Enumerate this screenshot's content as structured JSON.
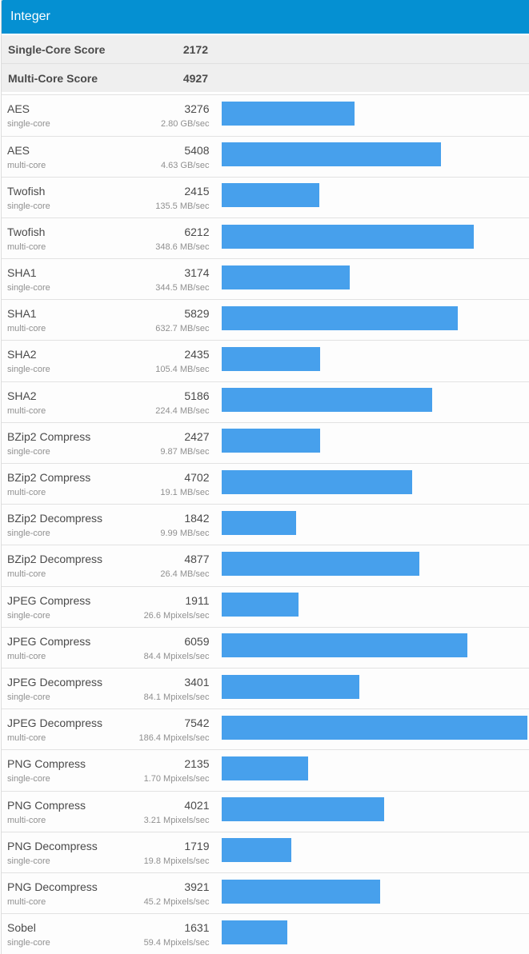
{
  "colors": {
    "header_bg": "#0590d2",
    "bar_fill": "#47a0ec",
    "summary_bg": "#efefef"
  },
  "header": {
    "title": "Integer"
  },
  "summary": {
    "single_core": {
      "label": "Single-Core Score",
      "value": "2172"
    },
    "multi_core": {
      "label": "Multi-Core Score",
      "value": "4927"
    }
  },
  "chart_data": {
    "type": "bar",
    "orientation": "horizontal",
    "title": "Integer",
    "value_axis_max": 7542,
    "rows": [
      {
        "name": "AES",
        "variant": "single-core",
        "score": 3276,
        "rate": "2.80 GB/sec"
      },
      {
        "name": "AES",
        "variant": "multi-core",
        "score": 5408,
        "rate": "4.63 GB/sec"
      },
      {
        "name": "Twofish",
        "variant": "single-core",
        "score": 2415,
        "rate": "135.5 MB/sec"
      },
      {
        "name": "Twofish",
        "variant": "multi-core",
        "score": 6212,
        "rate": "348.6 MB/sec"
      },
      {
        "name": "SHA1",
        "variant": "single-core",
        "score": 3174,
        "rate": "344.5 MB/sec"
      },
      {
        "name": "SHA1",
        "variant": "multi-core",
        "score": 5829,
        "rate": "632.7 MB/sec"
      },
      {
        "name": "SHA2",
        "variant": "single-core",
        "score": 2435,
        "rate": "105.4 MB/sec"
      },
      {
        "name": "SHA2",
        "variant": "multi-core",
        "score": 5186,
        "rate": "224.4 MB/sec"
      },
      {
        "name": "BZip2 Compress",
        "variant": "single-core",
        "score": 2427,
        "rate": "9.87 MB/sec"
      },
      {
        "name": "BZip2 Compress",
        "variant": "multi-core",
        "score": 4702,
        "rate": "19.1 MB/sec"
      },
      {
        "name": "BZip2 Decompress",
        "variant": "single-core",
        "score": 1842,
        "rate": "9.99 MB/sec"
      },
      {
        "name": "BZip2 Decompress",
        "variant": "multi-core",
        "score": 4877,
        "rate": "26.4 MB/sec"
      },
      {
        "name": "JPEG Compress",
        "variant": "single-core",
        "score": 1911,
        "rate": "26.6 Mpixels/sec"
      },
      {
        "name": "JPEG Compress",
        "variant": "multi-core",
        "score": 6059,
        "rate": "84.4 Mpixels/sec"
      },
      {
        "name": "JPEG Decompress",
        "variant": "single-core",
        "score": 3401,
        "rate": "84.1 Mpixels/sec"
      },
      {
        "name": "JPEG Decompress",
        "variant": "multi-core",
        "score": 7542,
        "rate": "186.4 Mpixels/sec"
      },
      {
        "name": "PNG Compress",
        "variant": "single-core",
        "score": 2135,
        "rate": "1.70 Mpixels/sec"
      },
      {
        "name": "PNG Compress",
        "variant": "multi-core",
        "score": 4021,
        "rate": "3.21 Mpixels/sec"
      },
      {
        "name": "PNG Decompress",
        "variant": "single-core",
        "score": 1719,
        "rate": "19.8 Mpixels/sec"
      },
      {
        "name": "PNG Decompress",
        "variant": "multi-core",
        "score": 3921,
        "rate": "45.2 Mpixels/sec"
      },
      {
        "name": "Sobel",
        "variant": "single-core",
        "score": 1631,
        "rate": "59.4 Mpixels/sec"
      }
    ]
  }
}
